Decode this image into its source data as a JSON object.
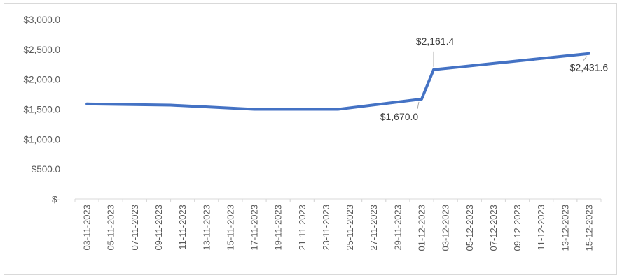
{
  "chart_data": {
    "type": "line",
    "title": "",
    "xlabel": "",
    "ylabel": "",
    "ylim": [
      0,
      3000
    ],
    "y_ticks": [
      0,
      500,
      1000,
      1500,
      2000,
      2500,
      3000
    ],
    "y_tick_labels": [
      "$-",
      "$500.0",
      "$1,000.0",
      "$1,500.0",
      "$2,000.0",
      "$2,500.0",
      "$3,000.0"
    ],
    "x_tick_labels": [
      "03-11-2023",
      "05-11-2023",
      "07-11-2023",
      "09-11-2023",
      "11-11-2023",
      "13-11-2023",
      "15-11-2023",
      "17-11-2023",
      "19-11-2023",
      "21-11-2023",
      "23-11-2023",
      "25-11-2023",
      "27-11-2023",
      "29-11-2023",
      "01-12-2023",
      "03-12-2023",
      "05-12-2023",
      "07-12-2023",
      "09-12-2023",
      "11-12-2023",
      "13-12-2023",
      "15-12-2023"
    ],
    "grid": false,
    "legend": "none",
    "line_color": "#4472c4",
    "series": [
      {
        "points": [
          {
            "x": "03-11-2023",
            "y": 1590
          },
          {
            "x": "10-11-2023",
            "y": 1570
          },
          {
            "x": "17-11-2023",
            "y": 1500
          },
          {
            "x": "24-11-2023",
            "y": 1500
          },
          {
            "x": "01-12-2023",
            "y": 1670.0,
            "label": "$1,670.0"
          },
          {
            "x": "02-12-2023",
            "y": 2161.4,
            "label": "$2,161.4"
          },
          {
            "x": "15-12-2023",
            "y": 2431.6,
            "label": "$2,431.6"
          }
        ]
      }
    ]
  }
}
